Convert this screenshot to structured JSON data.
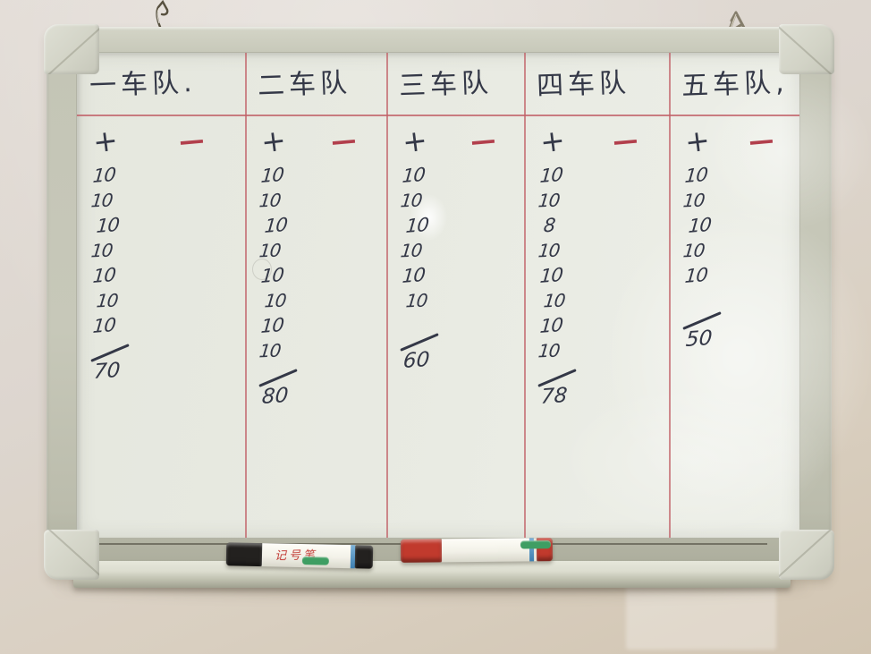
{
  "board": {
    "columns": [
      {
        "header": "一车队.",
        "plus_label": "+",
        "minus_label": "−",
        "values": [
          "10",
          "10",
          "10",
          "10",
          "10",
          "10",
          "10"
        ],
        "total": "70"
      },
      {
        "header": "二车队",
        "plus_label": "+",
        "minus_label": "−",
        "values": [
          "10",
          "10",
          "10",
          "10",
          "10",
          "10",
          "10",
          "10"
        ],
        "total": "80"
      },
      {
        "header": "三车队",
        "plus_label": "+",
        "minus_label": "−",
        "values": [
          "10",
          "10",
          "10",
          "10",
          "10",
          "10"
        ],
        "total": "60"
      },
      {
        "header": "四车队",
        "plus_label": "+",
        "minus_label": "−",
        "values": [
          "10",
          "10",
          "8",
          "10",
          "10",
          "10",
          "10",
          "10"
        ],
        "total": "78"
      },
      {
        "header": "五车队,",
        "plus_label": "+",
        "minus_label": "−",
        "values": [
          "10",
          "10",
          "10",
          "10",
          "10"
        ],
        "total": "50"
      }
    ],
    "tray_markers": [
      {
        "body_text": "记号笔"
      },
      {
        "body_text": ""
      }
    ]
  },
  "colors": {
    "divider_red": "#c05f66",
    "ink": "#343847",
    "minus_red": "#b23f4c",
    "frame": "#c7c8b9",
    "surface": "#e8eae1",
    "wall_top": "#e3ddd7",
    "wall_bottom": "#d2c5b2",
    "marker_black": "#23211f",
    "marker_red": "#c13a2d",
    "label_green": "#3f9e63"
  }
}
